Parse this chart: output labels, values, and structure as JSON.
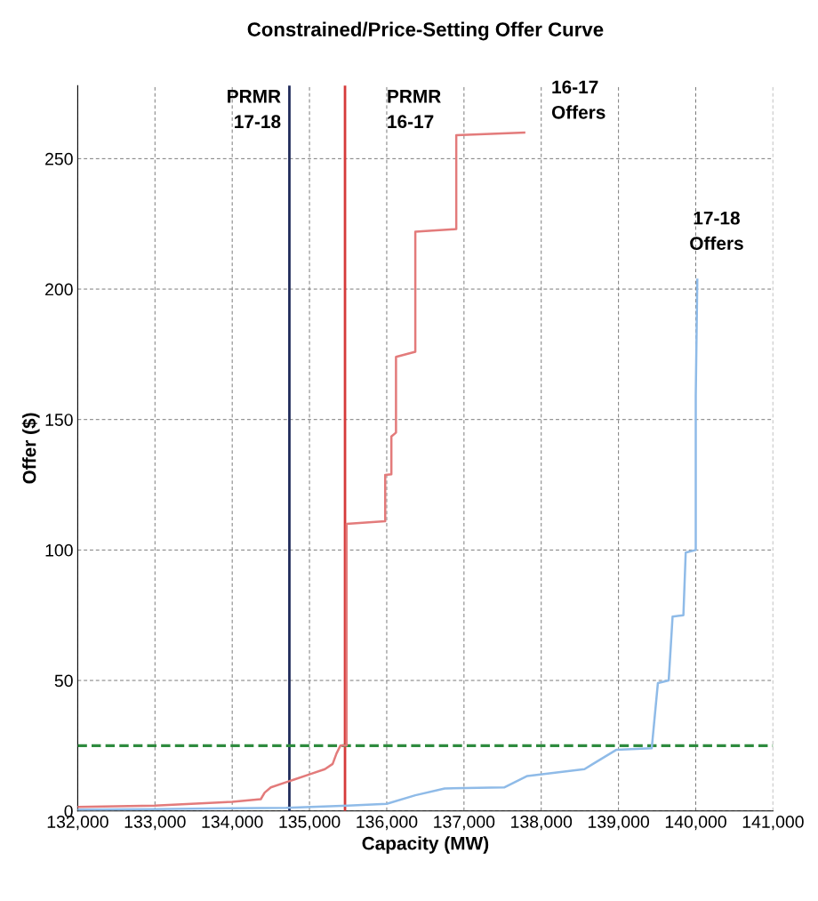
{
  "chart_data": {
    "type": "line",
    "title": "Constrained/Price-Setting Offer Curve",
    "xlabel": "Capacity (MW)",
    "ylabel": "Offer ($)",
    "xlim": [
      132000,
      141000
    ],
    "xticks": [
      {
        "value": 132000,
        "label": "132,000"
      },
      {
        "value": 133000,
        "label": "133,000"
      },
      {
        "value": 134000,
        "label": "134,000"
      },
      {
        "value": 135000,
        "label": "135,000"
      },
      {
        "value": 136000,
        "label": "136,000"
      },
      {
        "value": 137000,
        "label": "137,000"
      },
      {
        "value": 138000,
        "label": "138,000"
      },
      {
        "value": 139000,
        "label": "139,000"
      },
      {
        "value": 140000,
        "label": "140,000"
      },
      {
        "value": 141000,
        "label": "141,000"
      }
    ],
    "ylim": [
      0,
      278
    ],
    "yticks": [
      0,
      50,
      100,
      150,
      200,
      250
    ],
    "grid": true,
    "legend": false,
    "marker": "none",
    "line_style": "solid",
    "series": [
      {
        "name": "16-17 Offers",
        "color": "#e37b7b",
        "x": [
          132000,
          133000,
          134000,
          134370,
          134420,
          134500,
          134700,
          134800,
          135000,
          135200,
          135300,
          135350,
          135400,
          135480,
          135480,
          135980,
          135980,
          136060,
          136060,
          136120,
          136120,
          136370,
          136370,
          136900,
          136900,
          137780
        ],
        "values": [
          1.5,
          2,
          3.5,
          4.5,
          7,
          9,
          11,
          12,
          14,
          16,
          18,
          22,
          25,
          25,
          110,
          111,
          128.8,
          129,
          143.5,
          145,
          174,
          176,
          222,
          223,
          259,
          260
        ]
      },
      {
        "name": "17-18 Offers",
        "color": "#8fbbe8",
        "x": [
          132000,
          133000,
          134000,
          134700,
          135500,
          136000,
          136370,
          136750,
          137520,
          137820,
          138560,
          138670,
          138970,
          139430,
          139510,
          139650,
          139700,
          139840,
          139870,
          140000,
          140000,
          140020
        ],
        "values": [
          0.5,
          0.7,
          1,
          1.2,
          2,
          2.7,
          6,
          8.6,
          9,
          13.4,
          16,
          18,
          23.4,
          24,
          49,
          50,
          74.5,
          75,
          99,
          100,
          159,
          203.6
        ]
      }
    ],
    "ref_lines": [
      {
        "axis": "x",
        "value": 134740,
        "label": "PRMR\n17-18",
        "color": "#1f2a5a",
        "line_style": "solid"
      },
      {
        "axis": "x",
        "value": 135460,
        "label": "PRMR\n16-17",
        "color": "#d63a3a",
        "line_style": "solid"
      },
      {
        "axis": "y",
        "value": 25,
        "color": "#2e8b3e",
        "line_style": "dashed"
      }
    ]
  }
}
